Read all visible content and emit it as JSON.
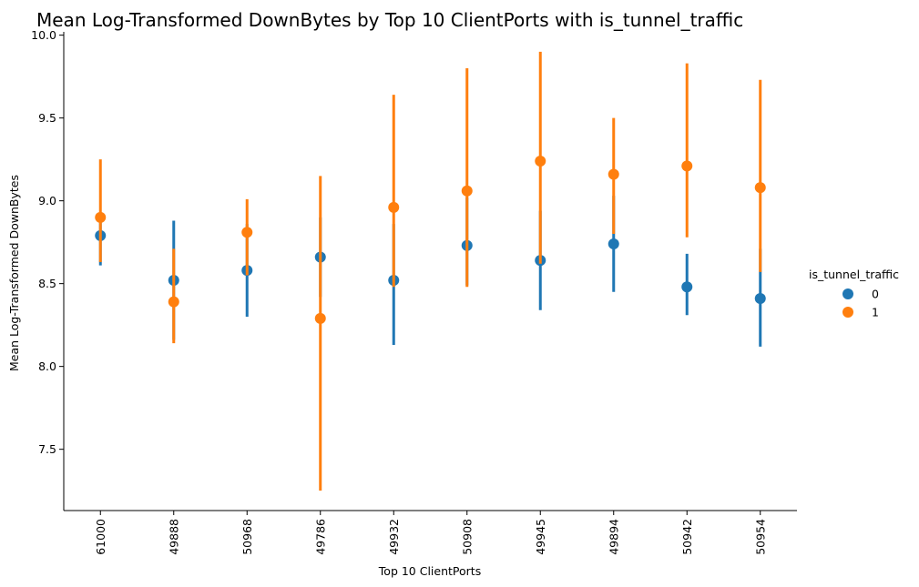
{
  "chart_data": {
    "type": "pointplot",
    "title": "Mean Log-Transformed DownBytes by Top 10 ClientPorts with is_tunnel_traffic",
    "xlabel": "Top 10 ClientPorts",
    "ylabel": "Mean Log-Transformed DownBytes",
    "categories": [
      "61000",
      "49888",
      "50968",
      "49786",
      "49932",
      "50908",
      "49945",
      "49894",
      "50942",
      "50954"
    ],
    "ylim": [
      7.13,
      10.02
    ],
    "yticks": [
      "7.5",
      "8.0",
      "8.5",
      "9.0",
      "9.5",
      "10.0"
    ],
    "legend": {
      "title": "is_tunnel_traffic",
      "position": "right"
    },
    "series": [
      {
        "name": "0",
        "color": "#1f77b4",
        "values": [
          8.79,
          8.52,
          8.58,
          8.66,
          8.52,
          8.73,
          8.64,
          8.74,
          8.48,
          8.41
        ],
        "ci_low": [
          8.61,
          8.16,
          8.3,
          8.42,
          8.13,
          8.49,
          8.34,
          8.45,
          8.31,
          8.12
        ],
        "ci_high": [
          8.92,
          8.88,
          8.86,
          8.9,
          8.86,
          9.02,
          8.94,
          9.03,
          8.68,
          8.71
        ]
      },
      {
        "name": "1",
        "color": "#ff7f0e",
        "values": [
          8.9,
          8.39,
          8.81,
          8.29,
          8.96,
          9.06,
          9.24,
          9.16,
          9.21,
          9.08
        ],
        "ci_low": [
          8.63,
          8.14,
          8.55,
          7.25,
          8.48,
          8.48,
          8.62,
          8.8,
          8.78,
          8.57
        ],
        "ci_high": [
          9.25,
          8.71,
          9.01,
          9.15,
          9.64,
          9.8,
          9.9,
          9.5,
          9.83,
          9.73
        ]
      }
    ],
    "grid": false
  }
}
